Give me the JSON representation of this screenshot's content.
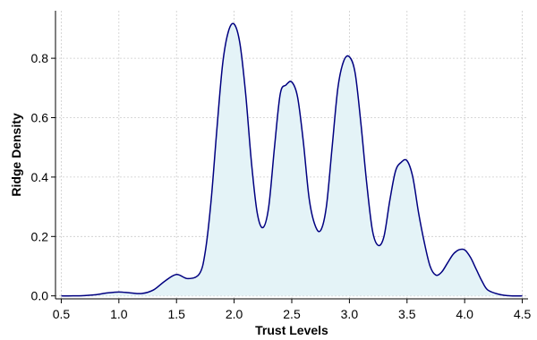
{
  "chart_data": {
    "type": "area",
    "title": "",
    "xlabel": "Trust Levels",
    "ylabel": "Ridge Density",
    "xlim": [
      0.45,
      4.55
    ],
    "ylim": [
      -0.01,
      0.96
    ],
    "xticks": [
      "0.5",
      "1.0",
      "1.5",
      "2.0",
      "2.5",
      "3.0",
      "3.5",
      "4.0",
      "4.5"
    ],
    "yticks": [
      "0.0",
      "0.2",
      "0.4",
      "0.6",
      "0.8"
    ],
    "grid": true,
    "legend": "none",
    "series": [
      {
        "x": [
          0.5,
          0.6,
          0.7,
          0.8,
          0.9,
          1.0,
          1.1,
          1.2,
          1.3,
          1.4,
          1.5,
          1.6,
          1.7,
          1.75,
          1.8,
          1.85,
          1.9,
          1.95,
          2.0,
          2.05,
          2.1,
          2.15,
          2.2,
          2.25,
          2.3,
          2.35,
          2.4,
          2.45,
          2.5,
          2.55,
          2.6,
          2.65,
          2.7,
          2.75,
          2.8,
          2.85,
          2.9,
          2.95,
          3.0,
          3.05,
          3.1,
          3.15,
          3.2,
          3.25,
          3.3,
          3.35,
          3.4,
          3.45,
          3.5,
          3.55,
          3.6,
          3.65,
          3.7,
          3.75,
          3.8,
          3.85,
          3.9,
          3.95,
          4.0,
          4.05,
          4.1,
          4.15,
          4.2,
          4.3,
          4.4,
          4.5
        ],
        "y": [
          0.0,
          0.0,
          0.001,
          0.004,
          0.01,
          0.013,
          0.01,
          0.008,
          0.02,
          0.05,
          0.072,
          0.058,
          0.075,
          0.15,
          0.32,
          0.56,
          0.78,
          0.89,
          0.915,
          0.85,
          0.68,
          0.45,
          0.28,
          0.23,
          0.3,
          0.5,
          0.68,
          0.71,
          0.72,
          0.67,
          0.52,
          0.33,
          0.24,
          0.22,
          0.3,
          0.5,
          0.7,
          0.79,
          0.805,
          0.75,
          0.58,
          0.38,
          0.22,
          0.17,
          0.2,
          0.32,
          0.42,
          0.45,
          0.455,
          0.4,
          0.28,
          0.18,
          0.1,
          0.07,
          0.08,
          0.11,
          0.14,
          0.155,
          0.155,
          0.13,
          0.09,
          0.05,
          0.02,
          0.005,
          0.0,
          0.0
        ]
      }
    ],
    "colors": {
      "line": "#000080",
      "fill": "#e4f3f7",
      "grid": "#cccccc"
    }
  }
}
